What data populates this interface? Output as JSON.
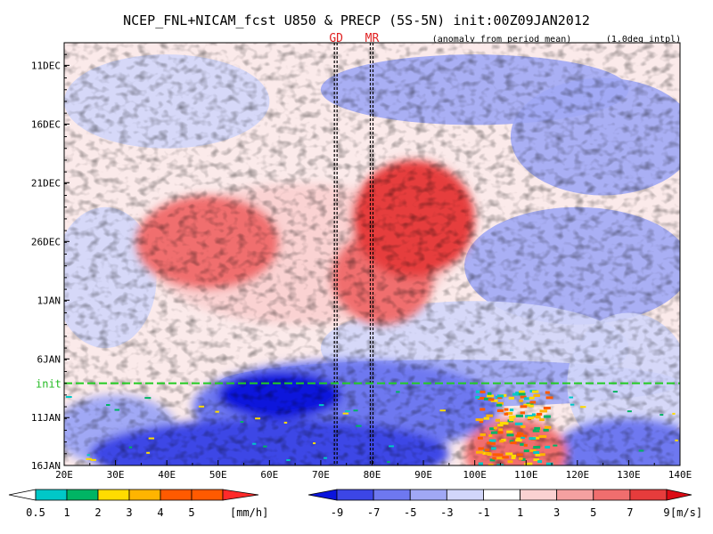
{
  "chart_data": {
    "type": "heatmap",
    "title": "NCEP_FNL+NICAM_fcst U850 & PRECP (5S-5N) init:00Z09JAN2012",
    "subtitle_note": "(anomaly from period mean)",
    "interp_note": "(1.0deg intpl)",
    "markers": [
      {
        "label": "GD",
        "lon": 73
      },
      {
        "label": "MR",
        "lon": 80
      }
    ],
    "init_line": {
      "label": "init",
      "date_index": 29
    },
    "x_axis": {
      "range": [
        20,
        140
      ],
      "ticks": [
        20,
        30,
        40,
        50,
        60,
        70,
        80,
        90,
        100,
        110,
        120,
        130,
        140
      ],
      "tick_labels": [
        "20E",
        "30E",
        "40E",
        "50E",
        "60E",
        "70E",
        "80E",
        "90E",
        "100E",
        "110E",
        "120E",
        "130E",
        "140E"
      ]
    },
    "y_axis": {
      "range": [
        0,
        36
      ],
      "start_date": "9DEC2011",
      "ticks": [
        2,
        7,
        12,
        17,
        22,
        27,
        32,
        37
      ],
      "tick_labels": [
        "11DEC",
        "16DEC",
        "21DEC",
        "26DEC",
        "1JAN",
        "6JAN",
        "11JAN",
        "16JAN"
      ]
    },
    "u850_anomalies": [
      {
        "lon": 48,
        "day": 17,
        "value": 7,
        "rx": 14,
        "ry": 4
      },
      {
        "lon": 88,
        "day": 15,
        "value": 9,
        "rx": 12,
        "ry": 5
      },
      {
        "lon": 82,
        "day": 20,
        "value": 7,
        "rx": 10,
        "ry": 4
      },
      {
        "lon": 66,
        "day": 18,
        "value": 3,
        "rx": 30,
        "ry": 6
      },
      {
        "lon": 75,
        "day": 31,
        "value": -5,
        "rx": 30,
        "ry": 4
      },
      {
        "lon": 62,
        "day": 30,
        "value": -9,
        "rx": 12,
        "ry": 2
      },
      {
        "lon": 60,
        "day": 35,
        "value": -7,
        "rx": 35,
        "ry": 3
      },
      {
        "lon": 108,
        "day": 35,
        "value": 7,
        "rx": 10,
        "ry": 3
      },
      {
        "lon": 130,
        "day": 35,
        "value": -5,
        "rx": 15,
        "ry": 3
      },
      {
        "lon": 30,
        "day": 33,
        "value": -3,
        "rx": 12,
        "ry": 3
      }
    ],
    "precip_legend": {
      "unit": "[mm/h]",
      "levels": [
        0.5,
        1,
        2,
        3,
        4,
        5
      ],
      "tick_labels": [
        "0.5",
        "1",
        "2",
        "3",
        "4",
        "5"
      ],
      "colors": [
        "#ffffff",
        "#00c8c8",
        "#00b464",
        "#ffdc00",
        "#ffb400",
        "#ff5a00"
      ]
    },
    "u850_legend": {
      "unit": "[m/s]",
      "levels": [
        -9,
        -7,
        -5,
        -3,
        -1,
        1,
        3,
        5,
        7,
        9
      ],
      "tick_labels": [
        "-9",
        "-7",
        "-5",
        "-3",
        "-1",
        "1",
        "3",
        "5",
        "7",
        "9"
      ],
      "colors": [
        "#0a14dc",
        "#3c46e6",
        "#6e78f0",
        "#a0a8f5",
        "#d2d6fa",
        "#ffffff",
        "#fad2d2",
        "#f5a0a0",
        "#f06e6e",
        "#e63c3c",
        "#dc0a14"
      ]
    }
  }
}
